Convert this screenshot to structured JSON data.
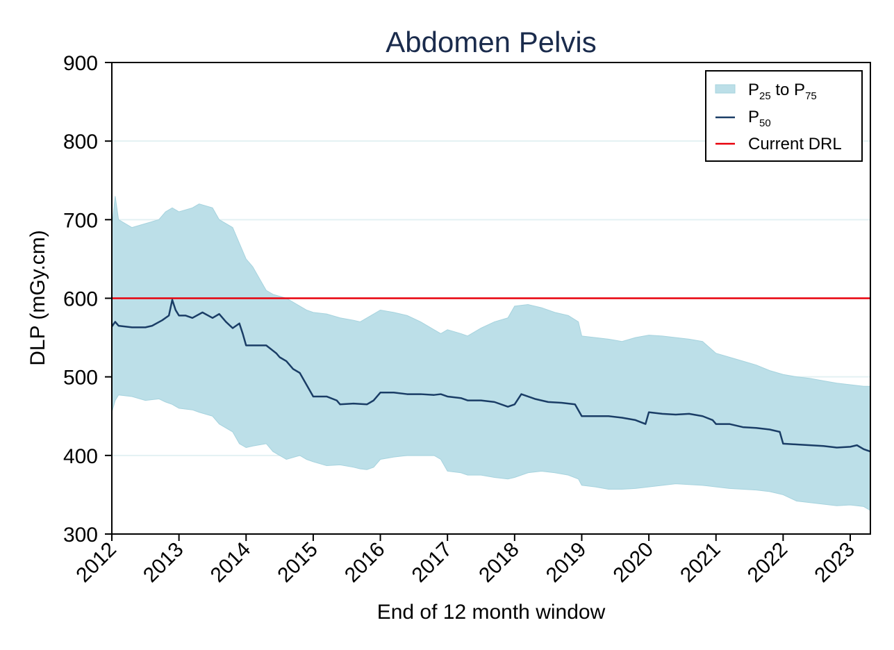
{
  "chart_data": {
    "type": "area",
    "title": "Abdomen Pelvis",
    "xlabel": "End of 12 month window",
    "ylabel": "DLP (mGy.cm)",
    "xlim": [
      2012,
      2023.3
    ],
    "ylim": [
      300,
      900
    ],
    "yticks": [
      300,
      400,
      500,
      600,
      700,
      800,
      900
    ],
    "xticks": [
      2012,
      2013,
      2014,
      2015,
      2016,
      2017,
      2018,
      2019,
      2020,
      2021,
      2022,
      2023
    ],
    "grid": "horizontal",
    "legend_position": "top-right",
    "legend": [
      {
        "label_main": "P",
        "sub1": "25",
        "mid": " to P",
        "sub2": "75",
        "kind": "band"
      },
      {
        "label_main": "P",
        "sub1": "50",
        "kind": "line"
      },
      {
        "label_main": "Current DRL",
        "kind": "refline"
      }
    ],
    "colors": {
      "band": "#bcdfe8",
      "band_edge": "#a6d3de",
      "median": "#1a3d66",
      "drl": "#e8000b",
      "grid": "#e3f1f3",
      "title": "#1a2b4c"
    },
    "drl": 600,
    "band": {
      "x": [
        2012.0,
        2012.05,
        2012.1,
        2012.3,
        2012.5,
        2012.7,
        2012.8,
        2012.9,
        2013.0,
        2013.2,
        2013.3,
        2013.5,
        2013.6,
        2013.8,
        2013.9,
        2014.0,
        2014.1,
        2014.3,
        2014.4,
        2014.6,
        2014.8,
        2014.9,
        2015.0,
        2015.2,
        2015.4,
        2015.6,
        2015.7,
        2015.8,
        2015.9,
        2016.0,
        2016.2,
        2016.4,
        2016.6,
        2016.8,
        2016.9,
        2017.0,
        2017.2,
        2017.3,
        2017.5,
        2017.7,
        2017.9,
        2018.0,
        2018.2,
        2018.4,
        2018.6,
        2018.8,
        2018.95,
        2019.0,
        2019.2,
        2019.4,
        2019.6,
        2019.8,
        2020.0,
        2020.2,
        2020.4,
        2020.6,
        2020.8,
        2021.0,
        2021.2,
        2021.4,
        2021.6,
        2021.8,
        2022.0,
        2022.2,
        2022.4,
        2022.6,
        2022.8,
        2023.0,
        2023.2,
        2023.3
      ],
      "p25": [
        455,
        470,
        477,
        475,
        470,
        472,
        468,
        465,
        460,
        458,
        455,
        450,
        440,
        430,
        415,
        410,
        412,
        415,
        405,
        395,
        400,
        395,
        392,
        387,
        388,
        385,
        383,
        382,
        385,
        395,
        398,
        400,
        400,
        400,
        395,
        380,
        378,
        375,
        375,
        372,
        370,
        372,
        378,
        380,
        378,
        375,
        370,
        362,
        360,
        357,
        357,
        358,
        360,
        362,
        364,
        363,
        362,
        360,
        358,
        357,
        356,
        354,
        350,
        342,
        340,
        338,
        336,
        337,
        335,
        330
      ],
      "p75": [
        690,
        730,
        700,
        690,
        695,
        700,
        710,
        715,
        710,
        715,
        720,
        715,
        700,
        690,
        670,
        650,
        640,
        610,
        605,
        600,
        590,
        585,
        582,
        580,
        575,
        572,
        570,
        575,
        580,
        585,
        582,
        578,
        570,
        560,
        555,
        560,
        555,
        552,
        562,
        570,
        575,
        590,
        592,
        588,
        582,
        578,
        570,
        552,
        550,
        548,
        545,
        550,
        553,
        552,
        550,
        548,
        545,
        530,
        525,
        520,
        515,
        508,
        503,
        500,
        498,
        495,
        492,
        490,
        488,
        488
      ]
    },
    "series": [
      {
        "name": "P50",
        "x": [
          2012.0,
          2012.05,
          2012.1,
          2012.3,
          2012.5,
          2012.6,
          2012.75,
          2012.85,
          2012.9,
          2012.95,
          2013.0,
          2013.1,
          2013.2,
          2013.35,
          2013.5,
          2013.6,
          2013.7,
          2013.8,
          2013.9,
          2013.95,
          2014.0,
          2014.1,
          2014.3,
          2014.45,
          2014.5,
          2014.6,
          2014.7,
          2014.8,
          2014.9,
          2015.0,
          2015.2,
          2015.35,
          2015.4,
          2015.6,
          2015.8,
          2015.9,
          2016.0,
          2016.2,
          2016.4,
          2016.6,
          2016.8,
          2016.9,
          2017.0,
          2017.2,
          2017.3,
          2017.5,
          2017.7,
          2017.9,
          2018.0,
          2018.1,
          2018.3,
          2018.5,
          2018.7,
          2018.9,
          2019.0,
          2019.2,
          2019.4,
          2019.6,
          2019.8,
          2019.95,
          2020.0,
          2020.2,
          2020.4,
          2020.6,
          2020.8,
          2020.95,
          2021.0,
          2021.2,
          2021.4,
          2021.6,
          2021.8,
          2021.95,
          2022.0,
          2022.2,
          2022.4,
          2022.6,
          2022.8,
          2023.0,
          2023.1,
          2023.2,
          2023.3
        ],
        "values": [
          564,
          570,
          565,
          563,
          563,
          565,
          572,
          578,
          598,
          585,
          578,
          578,
          575,
          582,
          575,
          580,
          570,
          562,
          568,
          555,
          540,
          540,
          540,
          530,
          525,
          520,
          510,
          505,
          490,
          475,
          475,
          470,
          465,
          466,
          465,
          470,
          480,
          480,
          478,
          478,
          477,
          478,
          475,
          473,
          470,
          470,
          468,
          462,
          465,
          478,
          472,
          468,
          467,
          465,
          450,
          450,
          450,
          448,
          445,
          440,
          455,
          453,
          452,
          453,
          450,
          445,
          440,
          440,
          436,
          435,
          433,
          430,
          415,
          414,
          413,
          412,
          410,
          411,
          413,
          408,
          405
        ]
      }
    ]
  }
}
